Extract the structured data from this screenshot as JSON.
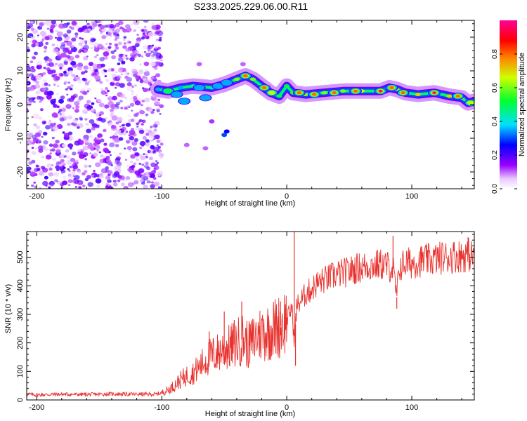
{
  "title": "S233.2025.229.06.00.R11",
  "chart_data": [
    {
      "type": "heatmap",
      "xlabel": "Height of straight line (km)",
      "ylabel": "Frequency (Hz)",
      "xlim": [
        -208,
        150
      ],
      "ylim": [
        -25,
        25
      ],
      "xticks": [
        -200,
        -100,
        0,
        100
      ],
      "yticks": [
        -20,
        -10,
        0,
        10,
        20
      ],
      "colorbar": {
        "label": "Normalized spectral amplitude",
        "range": [
          0,
          1
        ],
        "ticks": [
          "0.0",
          "0.2",
          "0.4",
          "0.6",
          "0.8"
        ],
        "colors": [
          "#ffffff",
          "#9a00ff",
          "#0000ff",
          "#00ffff",
          "#00ff00",
          "#ffff00",
          "#ff0000",
          "#ff0099"
        ]
      },
      "noise_region": {
        "x_range": [
          -208,
          -100
        ],
        "f_range": [
          -25,
          25
        ],
        "amplitude": 0.12
      },
      "tone_track": [
        {
          "x": -103,
          "f": 4.5,
          "a": 0.35
        },
        {
          "x": -95,
          "f": 4.0,
          "a": 0.4
        },
        {
          "x": -85,
          "f": 5.0,
          "a": 0.35
        },
        {
          "x": -75,
          "f": 5.5,
          "a": 0.45
        },
        {
          "x": -60,
          "f": 5.0,
          "a": 0.45
        },
        {
          "x": -50,
          "f": 6.0,
          "a": 0.5
        },
        {
          "x": -40,
          "f": 7.5,
          "a": 0.6
        },
        {
          "x": -33,
          "f": 8.5,
          "a": 0.65
        },
        {
          "x": -27,
          "f": 7.5,
          "a": 0.6
        },
        {
          "x": -20,
          "f": 5.5,
          "a": 0.6
        },
        {
          "x": -13,
          "f": 3.5,
          "a": 0.55
        },
        {
          "x": -6,
          "f": 2.5,
          "a": 0.5
        },
        {
          "x": 0,
          "f": 5.5,
          "a": 0.5
        },
        {
          "x": 5,
          "f": 3.5,
          "a": 0.55
        },
        {
          "x": 15,
          "f": 3.0,
          "a": 0.6
        },
        {
          "x": 30,
          "f": 3.5,
          "a": 0.6
        },
        {
          "x": 45,
          "f": 4.0,
          "a": 0.6
        },
        {
          "x": 60,
          "f": 4.0,
          "a": 0.65
        },
        {
          "x": 75,
          "f": 4.0,
          "a": 0.7
        },
        {
          "x": 82,
          "f": 5.0,
          "a": 0.6
        },
        {
          "x": 88,
          "f": 4.5,
          "a": 0.6
        },
        {
          "x": 95,
          "f": 3.5,
          "a": 0.65
        },
        {
          "x": 105,
          "f": 3.0,
          "a": 0.7
        },
        {
          "x": 118,
          "f": 3.5,
          "a": 0.8
        },
        {
          "x": 130,
          "f": 2.5,
          "a": 0.7
        },
        {
          "x": 140,
          "f": 2.0,
          "a": 0.6
        },
        {
          "x": 145,
          "f": 0.5,
          "a": 0.55
        },
        {
          "x": 150,
          "f": 1.0,
          "a": 0.5
        }
      ],
      "blobs": [
        {
          "x": -95,
          "f": 4.0,
          "a": 0.5
        },
        {
          "x": -88,
          "f": 3.0,
          "a": 0.45
        },
        {
          "x": -82,
          "f": 1.0,
          "a": 0.45
        },
        {
          "x": -70,
          "f": 5.0,
          "a": 0.45
        },
        {
          "x": -65,
          "f": 2.0,
          "a": 0.4
        },
        {
          "x": -55,
          "f": 5.5,
          "a": 0.4
        },
        {
          "x": -48,
          "f": 6.5,
          "a": 0.45
        },
        {
          "x": -33,
          "f": 8.5,
          "a": 0.85
        },
        {
          "x": -18,
          "f": 5.0,
          "a": 0.8
        },
        {
          "x": -12,
          "f": 3.5,
          "a": 0.75
        },
        {
          "x": 10,
          "f": 3.5,
          "a": 0.8
        },
        {
          "x": 22,
          "f": 3.0,
          "a": 0.8
        },
        {
          "x": 38,
          "f": 3.5,
          "a": 0.8
        },
        {
          "x": 55,
          "f": 4.0,
          "a": 0.8
        },
        {
          "x": 75,
          "f": 4.0,
          "a": 0.95
        },
        {
          "x": 84,
          "f": 5.0,
          "a": 0.8
        },
        {
          "x": 93,
          "f": 3.5,
          "a": 0.85
        },
        {
          "x": 118,
          "f": 3.5,
          "a": 0.98
        },
        {
          "x": 137,
          "f": 2.5,
          "a": 0.9
        },
        {
          "x": 147,
          "f": 0.5,
          "a": 0.75
        }
      ],
      "scatter_points": [
        {
          "x": -50,
          "f": -9.0,
          "a": 0.3
        },
        {
          "x": -48,
          "f": -8.0,
          "a": 0.25
        },
        {
          "x": -60,
          "f": -5.0,
          "a": 0.12
        },
        {
          "x": -70,
          "f": 12.0,
          "a": 0.1
        },
        {
          "x": -80,
          "f": -12.0,
          "a": 0.1
        },
        {
          "x": -65,
          "f": -13.0,
          "a": 0.1
        },
        {
          "x": -35,
          "f": 12.0,
          "a": 0.1
        }
      ]
    },
    {
      "type": "line",
      "xlabel": "Height of straight line (km)",
      "ylabel": "SNR (10 * v/v)",
      "xlim": [
        -208,
        150
      ],
      "ylim": [
        0,
        590
      ],
      "xticks": [
        -200,
        -100,
        0,
        100
      ],
      "yticks": [
        0,
        100,
        200,
        300,
        400,
        500
      ],
      "color": "#e8322e",
      "series": [
        {
          "name": "SNR",
          "x": [
            -208,
            -200,
            -180,
            -160,
            -140,
            -120,
            -105,
            -100,
            -95,
            -90,
            -85,
            -80,
            -75,
            -70,
            -65,
            -60,
            -55,
            -50,
            -45,
            -40,
            -35,
            -30,
            -25,
            -20,
            -15,
            -10,
            -5,
            0,
            2,
            4,
            6,
            8,
            10,
            15,
            20,
            25,
            30,
            35,
            40,
            45,
            50,
            55,
            60,
            65,
            70,
            75,
            80,
            85,
            88,
            90,
            95,
            100,
            105,
            110,
            115,
            120,
            125,
            130,
            135,
            140,
            145,
            150
          ],
          "y": [
            20,
            18,
            20,
            19,
            21,
            20,
            20,
            25,
            35,
            50,
            70,
            85,
            95,
            115,
            140,
            155,
            165,
            180,
            185,
            200,
            215,
            190,
            220,
            235,
            240,
            250,
            260,
            285,
            300,
            330,
            200,
            330,
            340,
            370,
            390,
            410,
            420,
            430,
            440,
            445,
            450,
            460,
            465,
            470,
            470,
            475,
            470,
            460,
            360,
            465,
            480,
            480,
            485,
            490,
            490,
            495,
            500,
            500,
            505,
            505,
            510,
            500
          ]
        }
      ],
      "spikes": [
        {
          "x": -62,
          "y": 240
        },
        {
          "x": -50,
          "y": 310
        },
        {
          "x": -42,
          "y": 280
        },
        {
          "x": -36,
          "y": 345
        },
        {
          "x": -30,
          "y": 270
        },
        {
          "x": -22,
          "y": 260
        },
        {
          "x": -5,
          "y": 345
        },
        {
          "x": 6,
          "y": 590
        },
        {
          "x": 7,
          "y": 120
        },
        {
          "x": 88,
          "y": 320
        },
        {
          "x": 85,
          "y": 575
        },
        {
          "x": 145,
          "y": 570
        }
      ]
    }
  ]
}
